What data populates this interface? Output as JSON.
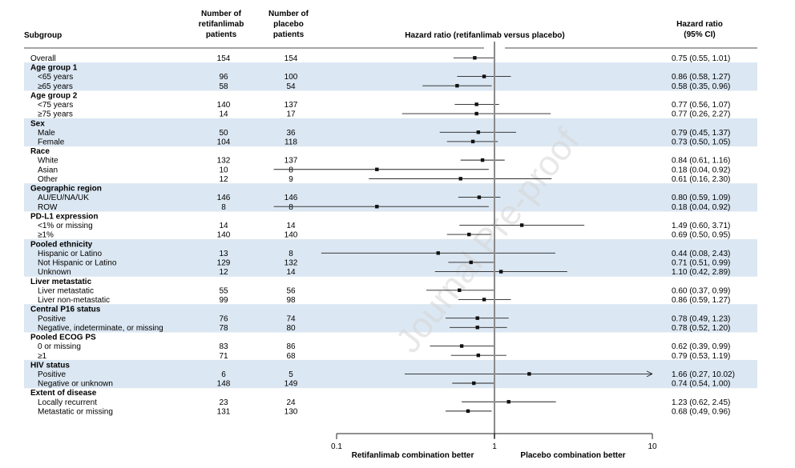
{
  "headers": {
    "subgroup": "Subgroup",
    "retifanlimab": [
      "Number of",
      "retifanlimab",
      "patients"
    ],
    "placebo": [
      "Number of",
      "placebo",
      "patients"
    ],
    "plot_title": "Hazard ratio (retifanlimab versus placebo)",
    "hr": [
      "Hazard ratio",
      "(95% CI)"
    ]
  },
  "watermark": "Journal Pre-proof",
  "chart_data": {
    "type": "forest",
    "x_scale": "log",
    "xlim": [
      0.1,
      10
    ],
    "x_ticks": [
      {
        "value": 0.1,
        "label": "0.1"
      },
      {
        "value": 1,
        "label": "1"
      },
      {
        "value": 10,
        "label": "10"
      }
    ],
    "reference_line": 1,
    "xlabel_left": "Retifanlimab combination better",
    "xlabel_right": "Placebo combination better",
    "rows": [
      {
        "label": "Overall",
        "n_retif": "154",
        "n_placebo": "154",
        "hr": 0.75,
        "lo": 0.55,
        "hi": 1.01,
        "ci_text": "0.75 (0.55, 1.01)",
        "shade": false
      },
      {
        "group": "Age group 1",
        "shade": true
      },
      {
        "label": "<65 years",
        "n_retif": "96",
        "n_placebo": "100",
        "hr": 0.86,
        "lo": 0.58,
        "hi": 1.27,
        "ci_text": "0.86 (0.58, 1.27)",
        "shade": true
      },
      {
        "label": "≥65 years",
        "n_retif": "58",
        "n_placebo": "54",
        "hr": 0.58,
        "lo": 0.35,
        "hi": 0.96,
        "ci_text": "0.58 (0.35, 0.96)",
        "shade": true
      },
      {
        "group": "Age group 2",
        "shade": false
      },
      {
        "label": "<75 years",
        "n_retif": "140",
        "n_placebo": "137",
        "hr": 0.77,
        "lo": 0.56,
        "hi": 1.07,
        "ci_text": "0.77 (0.56, 1.07)",
        "shade": false
      },
      {
        "label": "≥75 years",
        "n_retif": "14",
        "n_placebo": "17",
        "hr": 0.77,
        "lo": 0.26,
        "hi": 2.27,
        "ci_text": "0.77 (0.26, 2.27)",
        "shade": false
      },
      {
        "group": "Sex",
        "shade": true
      },
      {
        "label": "Male",
        "n_retif": "50",
        "n_placebo": "36",
        "hr": 0.79,
        "lo": 0.45,
        "hi": 1.37,
        "ci_text": "0.79 (0.45, 1.37)",
        "shade": true
      },
      {
        "label": "Female",
        "n_retif": "104",
        "n_placebo": "118",
        "hr": 0.73,
        "lo": 0.5,
        "hi": 1.05,
        "ci_text": "0.73 (0.50, 1.05)",
        "shade": true
      },
      {
        "group": "Race",
        "shade": false
      },
      {
        "label": "White",
        "n_retif": "132",
        "n_placebo": "137",
        "hr": 0.84,
        "lo": 0.61,
        "hi": 1.16,
        "ci_text": "0.84 (0.61, 1.16)",
        "shade": false
      },
      {
        "label": "Asian",
        "n_retif": "10",
        "n_placebo": "8",
        "hr": 0.18,
        "lo": 0.04,
        "hi": 0.92,
        "ci_text": "0.18 (0.04, 0.92)",
        "shade": false
      },
      {
        "label": "Other",
        "n_retif": "12",
        "n_placebo": "9",
        "hr": 0.61,
        "lo": 0.16,
        "hi": 2.3,
        "ci_text": "0.61 (0.16, 2.30)",
        "shade": false
      },
      {
        "group": "Geographic region",
        "shade": true
      },
      {
        "label": "AU/EU/NA/UK",
        "n_retif": "146",
        "n_placebo": "146",
        "hr": 0.8,
        "lo": 0.59,
        "hi": 1.09,
        "ci_text": "0.80 (0.59, 1.09)",
        "shade": true
      },
      {
        "label": "ROW",
        "n_retif": "8",
        "n_placebo": "8",
        "hr": 0.18,
        "lo": 0.04,
        "hi": 0.92,
        "ci_text": "0.18 (0.04, 0.92)",
        "shade": true
      },
      {
        "group": "PD-L1 expression",
        "shade": false
      },
      {
        "label": "<1% or missing",
        "n_retif": "14",
        "n_placebo": "14",
        "hr": 1.49,
        "lo": 0.6,
        "hi": 3.71,
        "ci_text": "1.49 (0.60, 3.71)",
        "shade": false
      },
      {
        "label": "≥1%",
        "n_retif": "140",
        "n_placebo": "140",
        "hr": 0.69,
        "lo": 0.5,
        "hi": 0.95,
        "ci_text": "0.69 (0.50, 0.95)",
        "shade": false
      },
      {
        "group": "Pooled ethnicity",
        "shade": true
      },
      {
        "label": "Hispanic or Latino",
        "n_retif": "13",
        "n_placebo": "8",
        "hr": 0.44,
        "lo": 0.08,
        "hi": 2.43,
        "ci_text": "0.44 (0.08, 2.43)",
        "shade": true
      },
      {
        "label": "Not Hispanic or Latino",
        "n_retif": "129",
        "n_placebo": "132",
        "hr": 0.71,
        "lo": 0.51,
        "hi": 0.99,
        "ci_text": "0.71 (0.51, 0.99)",
        "shade": true
      },
      {
        "label": "Unknown",
        "n_retif": "12",
        "n_placebo": "14",
        "hr": 1.1,
        "lo": 0.42,
        "hi": 2.89,
        "ci_text": "1.10 (0.42, 2.89)",
        "shade": true
      },
      {
        "group": "Liver metastatic",
        "shade": false
      },
      {
        "label": "Liver metastatic",
        "n_retif": "55",
        "n_placebo": "56",
        "hr": 0.6,
        "lo": 0.37,
        "hi": 0.99,
        "ci_text": "0.60 (0.37, 0.99)",
        "shade": false
      },
      {
        "label": "Liver non-metastatic",
        "n_retif": "99",
        "n_placebo": "98",
        "hr": 0.86,
        "lo": 0.59,
        "hi": 1.27,
        "ci_text": "0.86 (0.59, 1.27)",
        "shade": false
      },
      {
        "group": "Central P16 status",
        "shade": true
      },
      {
        "label": "Positive",
        "n_retif": "76",
        "n_placebo": "74",
        "hr": 0.78,
        "lo": 0.49,
        "hi": 1.23,
        "ci_text": "0.78 (0.49, 1.23)",
        "shade": true
      },
      {
        "label": "Negative, indeterminate, or missing",
        "n_retif": "78",
        "n_placebo": "80",
        "hr": 0.78,
        "lo": 0.52,
        "hi": 1.2,
        "ci_text": "0.78 (0.52, 1.20)",
        "shade": true
      },
      {
        "group": "Pooled ECOG PS",
        "shade": false
      },
      {
        "label": "0 or missing",
        "n_retif": "83",
        "n_placebo": "86",
        "hr": 0.62,
        "lo": 0.39,
        "hi": 0.99,
        "ci_text": "0.62 (0.39, 0.99)",
        "shade": false
      },
      {
        "label": "≥1",
        "n_retif": "71",
        "n_placebo": "68",
        "hr": 0.79,
        "lo": 0.53,
        "hi": 1.19,
        "ci_text": "0.79 (0.53, 1.19)",
        "shade": false
      },
      {
        "group": "HIV status",
        "shade": true
      },
      {
        "label": "Positive",
        "n_retif": "6",
        "n_placebo": "5",
        "hr": 1.66,
        "lo": 0.27,
        "hi": 10.02,
        "ci_text": "1.66 (0.27, 10.02)",
        "shade": true,
        "arrow": true
      },
      {
        "label": "Negative or unknown",
        "n_retif": "148",
        "n_placebo": "149",
        "hr": 0.74,
        "lo": 0.54,
        "hi": 1.0,
        "ci_text": "0.74 (0.54, 1.00)",
        "shade": true
      },
      {
        "group": "Extent of disease",
        "shade": false
      },
      {
        "label": "Locally recurrent",
        "n_retif": "23",
        "n_placebo": "24",
        "hr": 1.23,
        "lo": 0.62,
        "hi": 2.45,
        "ci_text": "1.23 (0.62, 2.45)",
        "shade": false
      },
      {
        "label": "Metastatic or missing",
        "n_retif": "131",
        "n_placebo": "130",
        "hr": 0.68,
        "lo": 0.49,
        "hi": 0.96,
        "ci_text": "0.68 (0.49, 0.96)",
        "shade": false
      }
    ]
  }
}
